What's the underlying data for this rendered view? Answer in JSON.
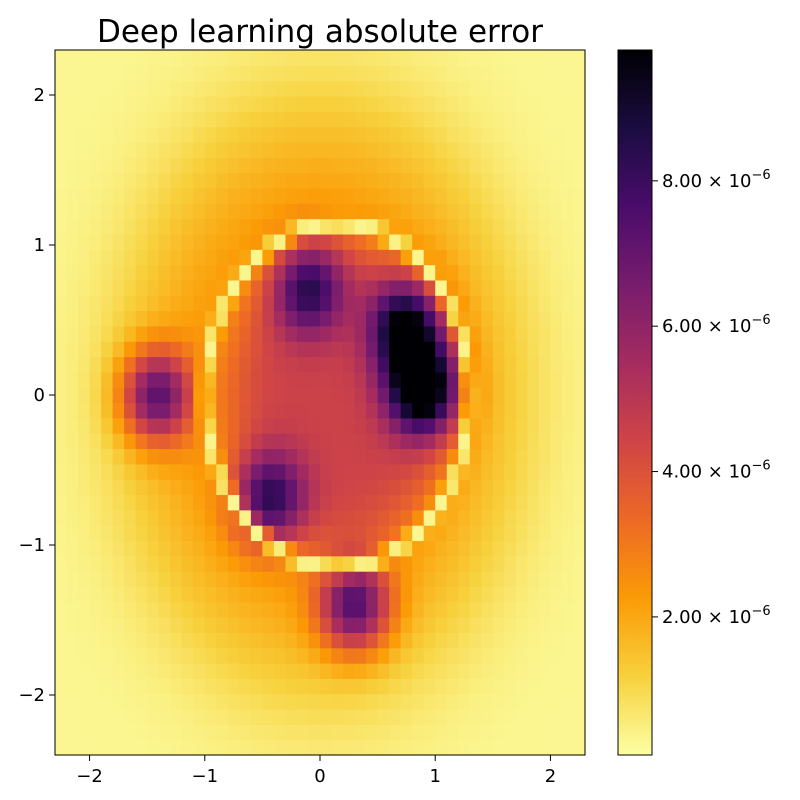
{
  "chart_data": {
    "type": "heatmap",
    "title": "Deep learning absolute error",
    "xlabel": "",
    "ylabel": "",
    "xlim": [
      -2.3,
      2.3
    ],
    "ylim": [
      -2.4,
      2.3
    ],
    "x_ticks": [
      -2,
      -1,
      0,
      1,
      2
    ],
    "x_tick_labels": [
      "−2",
      "−1",
      "0",
      "1",
      "2"
    ],
    "y_ticks": [
      -2,
      -1,
      0,
      1,
      2
    ],
    "y_tick_labels": [
      "−2",
      "−1",
      "0",
      "1",
      "2"
    ],
    "grid": false,
    "colormap": "inferno_r",
    "colormap_stops": [
      "#fcffa4",
      "#f7d13d",
      "#fb9b06",
      "#ed6925",
      "#cf4446",
      "#a52c60",
      "#781c6d",
      "#4a0c6b",
      "#1b0c41",
      "#000004"
    ],
    "colorbar": {
      "min": 1e-07,
      "max": 9.8e-06,
      "ticks": [
        2e-06,
        4e-06,
        6e-06,
        8e-06
      ],
      "tick_labels": [
        {
          "mantissa": "2.00",
          "base": "10",
          "exponent": "−6"
        },
        {
          "mantissa": "4.00",
          "base": "10",
          "exponent": "−6"
        },
        {
          "mantissa": "6.00",
          "base": "10",
          "exponent": "−6"
        },
        {
          "mantissa": "8.00",
          "base": "10",
          "exponent": "−6"
        }
      ]
    },
    "grid_resolution": {
      "nx": 46,
      "ny": 46
    },
    "features": [
      {
        "kind": "background",
        "value": 3e-07
      },
      {
        "kind": "outer-halo",
        "center": [
          0.0,
          0.0
        ],
        "radius": [
          1.75,
          2.0
        ],
        "value": 2.5e-06
      },
      {
        "kind": "inner-field",
        "center": [
          0.2,
          0.0
        ],
        "radius": [
          1.0,
          1.05
        ],
        "value": 4.5e-06
      },
      {
        "kind": "peak",
        "x": 0.9,
        "y": 0.05,
        "value": 9.8e-06
      },
      {
        "kind": "peak",
        "x": 0.75,
        "y": 0.45,
        "value": 8.5e-06
      },
      {
        "kind": "peak",
        "x": -1.42,
        "y": 0.0,
        "value": 8e-06
      },
      {
        "kind": "peak",
        "x": 0.3,
        "y": -1.4,
        "value": 8e-06
      },
      {
        "kind": "peak",
        "x": -0.45,
        "y": -0.7,
        "value": 7.3e-06
      },
      {
        "kind": "peak",
        "x": -0.1,
        "y": 0.72,
        "value": 6.8e-06
      },
      {
        "kind": "valley-ring",
        "center": [
          0.15,
          0.0
        ],
        "radius": [
          1.15,
          1.15
        ],
        "value": 3e-07
      }
    ]
  }
}
